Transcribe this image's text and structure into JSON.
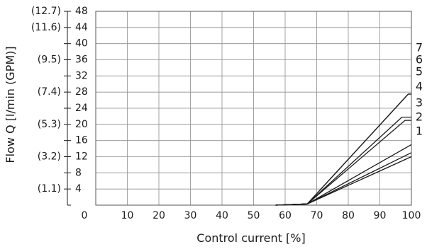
{
  "chart_data": {
    "type": "line",
    "title": "",
    "xlabel": "Control current [%]",
    "ylabel": "Flow Q [l/min (GPM)]",
    "xlim": [
      0,
      100
    ],
    "ylim": [
      0,
      48
    ],
    "x_ticks": [
      "0",
      "10",
      "20",
      "30",
      "40",
      "50",
      "60",
      "70",
      "80",
      "90",
      "100"
    ],
    "y_ticks": [
      "4",
      "8",
      "12",
      "16",
      "20",
      "24",
      "28",
      "32",
      "36",
      "40",
      "44",
      "48"
    ],
    "y_ticks_secondary": [
      {
        "label": "(1.1)",
        "value": 4
      },
      {
        "label": "(3.2)",
        "value": 12
      },
      {
        "label": "(5.3)",
        "value": 20
      },
      {
        "label": "(7.4)",
        "value": 28
      },
      {
        "label": "(9.5)",
        "value": 36
      },
      {
        "label": "(11.6)",
        "value": 44
      },
      {
        "label": "(12.7)",
        "value": 48
      }
    ],
    "grid": true,
    "series": [
      {
        "name": "1",
        "x": [
          57,
          67,
          100
        ],
        "y": [
          0,
          0.3,
          12
        ]
      },
      {
        "name": "2",
        "x": [
          57,
          67,
          100
        ],
        "y": [
          0,
          0.3,
          13
        ]
      },
      {
        "name": "3",
        "x": [
          57,
          67,
          100
        ],
        "y": [
          0,
          0.3,
          15
        ]
      },
      {
        "name": "4",
        "x": [
          57,
          67,
          98,
          100
        ],
        "y": [
          0,
          0.3,
          21,
          21
        ]
      },
      {
        "name": "5",
        "x": [
          57,
          67,
          97,
          100
        ],
        "y": [
          0,
          0.3,
          21.8,
          21.8
        ]
      },
      {
        "name": "6",
        "x": [
          57,
          67,
          99,
          100
        ],
        "y": [
          0,
          0.3,
          27.5,
          27.5
        ]
      },
      {
        "name": "7",
        "x": [
          57,
          67,
          99,
          100
        ],
        "y": [
          0,
          0.3,
          27.5,
          27.5
        ]
      }
    ]
  }
}
